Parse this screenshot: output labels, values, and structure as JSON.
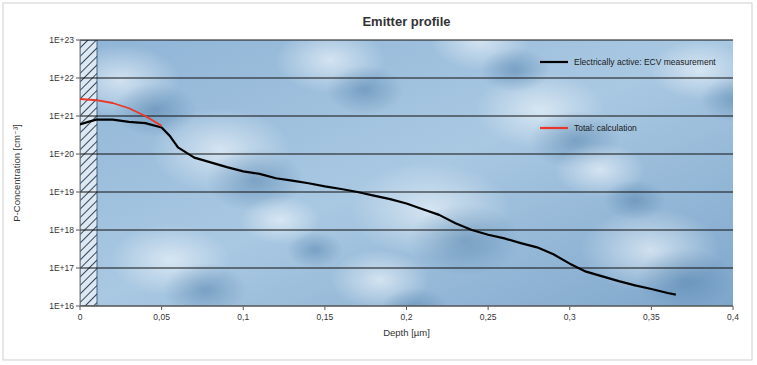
{
  "chart_data": {
    "type": "line",
    "title": "Emitter profile",
    "x_label": "Depth [µm]",
    "y_label": "P-Concentration [cm⁻³]",
    "log": "y",
    "grid": "y",
    "legend": "upper right",
    "xlim": [
      0,
      0.4
    ],
    "ylim": [
      1e+16,
      1e+23
    ],
    "xticks": [
      0,
      {
        "value": 0.05,
        "label": "0,05"
      },
      {
        "value": 0.1,
        "label": "0,1"
      },
      {
        "value": 0.15,
        "label": "0,15"
      },
      {
        "value": 0.2,
        "label": "0,2"
      },
      {
        "value": 0.25,
        "label": "0,25"
      },
      {
        "value": 0.3,
        "label": "0,3"
      },
      {
        "value": 0.35,
        "label": "0,35"
      },
      {
        "value": 0.4,
        "label": "0,4"
      }
    ],
    "yticks": [
      {
        "value": 1e+16,
        "label": "1E+16"
      },
      {
        "value": 1e+17,
        "label": "1E+17"
      },
      {
        "value": 1e+18,
        "label": "1E+18"
      },
      {
        "value": 1e+19,
        "label": "1E+19"
      },
      {
        "value": 1e+20,
        "label": "1E+20"
      },
      {
        "value": 1e+21,
        "label": "1E+21"
      },
      {
        "value": 1e+22,
        "label": "1E+22"
      },
      {
        "value": 1e+23,
        "label": "1E+23"
      }
    ],
    "series": [
      {
        "name": "Electrically active: ECV measurement",
        "color": "#000000",
        "x": [
          0,
          0.005,
          0.01,
          0.02,
          0.03,
          0.04,
          0.05,
          0.055,
          0.06,
          0.07,
          0.08,
          0.09,
          0.1,
          0.11,
          0.12,
          0.13,
          0.14,
          0.15,
          0.16,
          0.17,
          0.18,
          0.19,
          0.2,
          0.21,
          0.22,
          0.23,
          0.24,
          0.25,
          0.26,
          0.27,
          0.28,
          0.29,
          0.3,
          0.31,
          0.32,
          0.33,
          0.34,
          0.35,
          0.36,
          0.365
        ],
        "values": [
          6e+20,
          7e+20,
          8e+20,
          8e+20,
          7e+20,
          6.5e+20,
          5e+20,
          3e+20,
          1.5e+20,
          8e+19,
          6e+19,
          4.5e+19,
          3.5e+19,
          3e+19,
          2.3e+19,
          2e+19,
          1.7e+19,
          1.4e+19,
          1.2e+19,
          1e+19,
          8e+18,
          6.5e+18,
          5e+18,
          3.5e+18,
          2.5e+18,
          1.5e+18,
          1e+18,
          7.5e+17,
          6e+17,
          4.5e+17,
          3.5e+17,
          2.3e+17,
          1.3e+17,
          8e+16,
          6e+16,
          4.5e+16,
          3.5e+16,
          2.8e+16,
          2.2e+16,
          2e+16
        ]
      },
      {
        "name": "Total: calculation",
        "color": "#e8382a",
        "x": [
          0,
          0.01,
          0.02,
          0.03,
          0.04,
          0.05
        ],
        "values": [
          2.8e+21,
          2.6e+21,
          2.2e+21,
          1.6e+21,
          1e+21,
          5.5e+20
        ]
      }
    ]
  }
}
